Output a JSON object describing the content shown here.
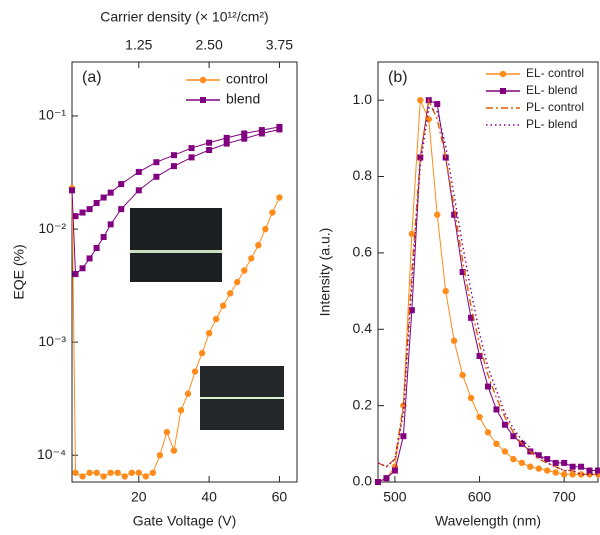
{
  "chart_data": [
    {
      "type": "line",
      "panel_label": "(a)",
      "xlabel": "Gate Voltage (V)",
      "ylabel": "EQE (%)",
      "x2label": "Carrier density (× 10¹²/cm²)",
      "xlim": [
        1,
        65
      ],
      "xticks": [
        20,
        40,
        60
      ],
      "x2lim": [
        0.0625,
        4.0625
      ],
      "x2ticks": [
        1.25,
        {
          "value": 2.5,
          "label": "2.50"
        },
        3.75
      ],
      "ylog": true,
      "ylim": [
        5.8e-05,
        0.3
      ],
      "yticks": [
        {
          "value": 0.0001,
          "label": "10⁻⁴"
        },
        {
          "value": 0.001,
          "label": "10⁻³"
        },
        {
          "value": 0.01,
          "label": "10⁻²"
        },
        {
          "value": 0.1,
          "label": "10⁻¹"
        }
      ],
      "legend": "upper right",
      "series": [
        {
          "name": "control",
          "color": "#ff8c1a",
          "marker": "circle",
          "dash": "solid",
          "x": [
            1,
            2,
            4,
            6,
            8,
            10,
            12,
            14,
            16,
            18,
            20,
            22,
            24,
            26,
            28,
            30,
            32,
            34,
            36,
            38,
            40,
            42,
            44,
            46,
            48,
            50,
            52,
            54,
            56,
            58,
            60
          ],
          "values": [
            0.023,
            7e-05,
            6.5e-05,
            7e-05,
            7e-05,
            6.5e-05,
            7e-05,
            7e-05,
            6.5e-05,
            7e-05,
            7e-05,
            6.5e-05,
            7e-05,
            0.0001,
            0.00016,
            0.00011,
            0.00025,
            0.00035,
            0.00055,
            0.0008,
            0.0012,
            0.0016,
            0.0021,
            0.0027,
            0.0034,
            0.0043,
            0.0055,
            0.0072,
            0.01,
            0.014,
            0.019
          ]
        },
        {
          "name": "blend",
          "color": "#800080",
          "marker": "square",
          "dash": "solid",
          "x": [
            1,
            2,
            4,
            6,
            8,
            10,
            12,
            15,
            20,
            25,
            30,
            35,
            40,
            45,
            50,
            55,
            60,
            60,
            55,
            50,
            45,
            40,
            35,
            30,
            25,
            20,
            15,
            12,
            10,
            8,
            6,
            4,
            2
          ],
          "values": [
            0.022,
            0.004,
            0.0045,
            0.0055,
            0.0068,
            0.0085,
            0.011,
            0.015,
            0.022,
            0.029,
            0.036,
            0.043,
            0.05,
            0.057,
            0.063,
            0.07,
            0.076,
            0.08,
            0.075,
            0.07,
            0.064,
            0.058,
            0.052,
            0.045,
            0.039,
            0.032,
            0.025,
            0.021,
            0.019,
            0.017,
            0.015,
            0.014,
            0.013
          ]
        }
      ]
    },
    {
      "type": "line",
      "panel_label": "(b)",
      "xlabel": "Wavelength (nm)",
      "ylabel": "Intensity (a.u.)",
      "xlim": [
        480,
        740
      ],
      "xticks": [
        500,
        600,
        700
      ],
      "ylim": [
        0,
        1.1
      ],
      "yticks": [
        {
          "value": 0,
          "label": "0.0"
        },
        0.2,
        0.4,
        0.6,
        0.8,
        {
          "value": 1,
          "label": "1.0"
        }
      ],
      "legend": "upper right",
      "x": [
        480,
        490,
        500,
        510,
        520,
        530,
        540,
        550,
        560,
        570,
        580,
        590,
        600,
        610,
        620,
        630,
        640,
        650,
        660,
        670,
        680,
        690,
        700,
        710,
        720,
        730,
        740
      ],
      "series": [
        {
          "name": "EL- control",
          "color": "#ff8c1a",
          "marker": "circle",
          "dash": "solid",
          "values": [
            0,
            0.01,
            0.04,
            0.2,
            0.65,
            1,
            0.95,
            0.7,
            0.5,
            0.37,
            0.28,
            0.22,
            0.17,
            0.13,
            0.1,
            0.08,
            0.06,
            0.05,
            0.04,
            0.035,
            0.03,
            0.025,
            0.02,
            0.02,
            0.02,
            0.02,
            0.02
          ]
        },
        {
          "name": "EL- blend",
          "color": "#800080",
          "marker": "square",
          "dash": "solid",
          "values": [
            0,
            0.01,
            0.03,
            0.12,
            0.45,
            0.85,
            1,
            0.99,
            0.85,
            0.7,
            0.55,
            0.43,
            0.33,
            0.25,
            0.19,
            0.15,
            0.12,
            0.1,
            0.08,
            0.07,
            0.06,
            0.05,
            0.05,
            0.04,
            0.04,
            0.03,
            0.03
          ]
        },
        {
          "name": "PL- control",
          "color": "#e06000",
          "marker": "none",
          "dash": "dashdot",
          "values": [
            0.05,
            0.04,
            0.06,
            0.2,
            0.55,
            0.85,
            1,
            0.95,
            0.85,
            0.72,
            0.58,
            0.46,
            0.36,
            0.28,
            0.22,
            0.17,
            0.13,
            0.1,
            0.08,
            0.06,
            0.05,
            0.04,
            0.03,
            0.03,
            0.02,
            0.02,
            0.02
          ]
        },
        {
          "name": "PL- blend",
          "color": "#800080",
          "marker": "none",
          "dash": "dotted",
          "values": [
            0.05,
            0.04,
            0.06,
            0.18,
            0.52,
            0.83,
            0.98,
            0.97,
            0.88,
            0.75,
            0.62,
            0.5,
            0.39,
            0.3,
            0.24,
            0.18,
            0.14,
            0.11,
            0.09,
            0.07,
            0.05,
            0.04,
            0.03,
            0.03,
            0.02,
            0.02,
            0.02
          ]
        }
      ]
    }
  ]
}
